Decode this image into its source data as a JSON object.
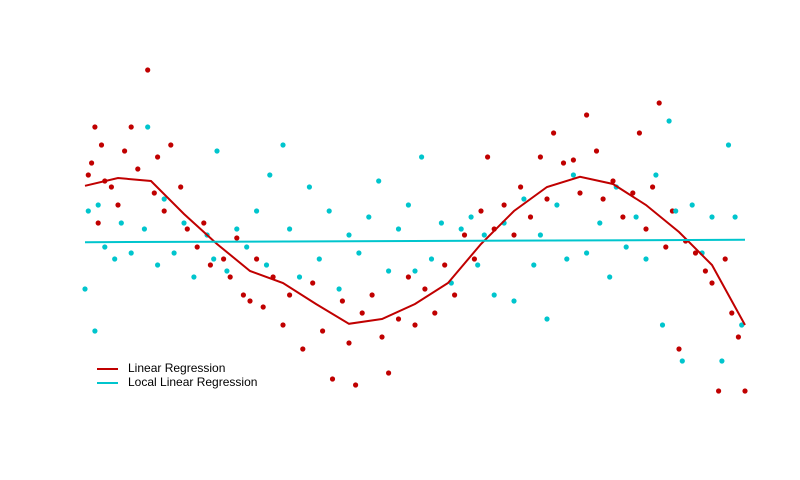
{
  "chart_data": {
    "type": "scatter",
    "legend": "bottom left",
    "xlim": [
      0,
      10
    ],
    "ylim": [
      -3,
      3
    ],
    "series": [
      {
        "name": "Linear Regression",
        "color": "#c00000",
        "x": [
          0.05,
          0.1,
          0.15,
          0.2,
          0.25,
          0.3,
          0.4,
          0.5,
          0.6,
          0.7,
          0.8,
          0.95,
          1.05,
          1.1,
          1.2,
          1.3,
          1.45,
          1.55,
          1.7,
          1.8,
          1.9,
          2.1,
          2.2,
          2.3,
          2.4,
          2.5,
          2.6,
          2.7,
          2.85,
          3.0,
          3.1,
          3.3,
          3.45,
          3.6,
          3.75,
          3.9,
          4.0,
          4.1,
          4.2,
          4.35,
          4.5,
          4.6,
          4.75,
          4.9,
          5.0,
          5.15,
          5.3,
          5.45,
          5.6,
          5.75,
          5.9,
          6.0,
          6.1,
          6.2,
          6.35,
          6.5,
          6.6,
          6.75,
          6.9,
          7.0,
          7.1,
          7.25,
          7.4,
          7.5,
          7.6,
          7.75,
          7.85,
          8.0,
          8.15,
          8.3,
          8.4,
          8.5,
          8.6,
          8.7,
          8.8,
          8.9,
          9.0,
          9.1,
          9.25,
          9.4,
          9.5,
          9.6,
          9.7,
          9.8,
          9.9,
          10.0
        ],
        "values": [
          1.1,
          1.3,
          1.9,
          0.3,
          1.6,
          1.0,
          0.9,
          0.6,
          1.5,
          1.9,
          1.2,
          2.85,
          0.8,
          1.4,
          0.5,
          1.6,
          0.9,
          0.2,
          -0.1,
          0.3,
          -0.4,
          -0.3,
          -0.6,
          0.05,
          -0.9,
          -1.0,
          -0.3,
          -1.1,
          -0.6,
          -1.4,
          -0.9,
          -1.8,
          -0.7,
          -1.5,
          -2.3,
          -1.0,
          -1.7,
          -2.4,
          -1.2,
          -0.9,
          -1.6,
          -2.2,
          -1.3,
          -0.6,
          -1.4,
          -0.8,
          -1.2,
          -0.4,
          -0.9,
          0.1,
          -0.3,
          0.5,
          1.4,
          0.2,
          0.6,
          0.1,
          0.9,
          0.4,
          1.4,
          0.7,
          1.8,
          1.3,
          1.35,
          0.8,
          2.1,
          1.5,
          0.7,
          1.0,
          0.4,
          0.8,
          1.8,
          0.2,
          0.9,
          2.3,
          -0.1,
          0.5,
          -1.8,
          0.0,
          -0.2,
          -0.5,
          -0.7,
          -2.5,
          -0.3,
          -1.2,
          -1.6,
          -2.5
        ],
        "fit_x": [
          0,
          0.5,
          1,
          1.5,
          2,
          2.5,
          3,
          3.5,
          4,
          4.5,
          5,
          5.5,
          6,
          6.5,
          7,
          7.5,
          8,
          8.5,
          9,
          9.5,
          10
        ],
        "fit_values": [
          0.92,
          1.05,
          1.0,
          0.45,
          -0.05,
          -0.5,
          -0.7,
          -1.05,
          -1.38,
          -1.3,
          -1.05,
          -0.7,
          -0.05,
          0.5,
          0.9,
          1.07,
          0.95,
          0.6,
          0.15,
          -0.4,
          -1.4
        ]
      },
      {
        "name": "Local Linear Regression",
        "color": "#00c5cd",
        "x": [
          0.0,
          0.05,
          0.15,
          0.2,
          0.3,
          0.45,
          0.55,
          0.7,
          0.9,
          0.95,
          1.1,
          1.2,
          1.35,
          1.5,
          1.65,
          1.85,
          1.95,
          2.0,
          2.15,
          2.3,
          2.45,
          2.6,
          2.75,
          2.8,
          3.0,
          3.1,
          3.25,
          3.4,
          3.55,
          3.7,
          3.85,
          4.0,
          4.15,
          4.3,
          4.45,
          4.6,
          4.75,
          4.9,
          5.0,
          5.1,
          5.25,
          5.4,
          5.55,
          5.7,
          5.85,
          5.95,
          6.05,
          6.2,
          6.35,
          6.5,
          6.65,
          6.8,
          6.9,
          7.0,
          7.15,
          7.3,
          7.4,
          7.6,
          7.8,
          7.95,
          8.05,
          8.2,
          8.35,
          8.5,
          8.65,
          8.75,
          8.85,
          8.95,
          9.05,
          9.2,
          9.35,
          9.5,
          9.65,
          9.75,
          9.85,
          9.95
        ],
        "values": [
          -0.8,
          0.5,
          -1.5,
          0.6,
          -0.1,
          -0.3,
          0.3,
          -0.2,
          0.2,
          1.9,
          -0.4,
          0.7,
          -0.2,
          0.3,
          -0.6,
          0.1,
          -0.3,
          1.5,
          -0.5,
          0.2,
          -0.1,
          0.5,
          -0.4,
          1.1,
          1.6,
          0.2,
          -0.6,
          0.9,
          -0.3,
          0.5,
          -0.8,
          0.1,
          -0.2,
          0.4,
          1.0,
          -0.5,
          0.2,
          0.6,
          -0.5,
          1.4,
          -0.3,
          0.3,
          -0.7,
          0.2,
          0.4,
          -0.4,
          0.1,
          -0.9,
          0.3,
          -1.0,
          0.7,
          -0.4,
          0.1,
          -1.3,
          0.6,
          -0.3,
          1.1,
          -0.2,
          0.3,
          -0.6,
          0.9,
          -0.1,
          0.4,
          -0.3,
          1.1,
          -1.4,
          2.0,
          0.5,
          -2.0,
          0.6,
          -0.2,
          0.4,
          -2.0,
          1.6,
          0.4,
          -1.4
        ],
        "fit_x": [
          0,
          10
        ],
        "fit_values": [
          -0.02,
          0.02
        ]
      }
    ]
  }
}
